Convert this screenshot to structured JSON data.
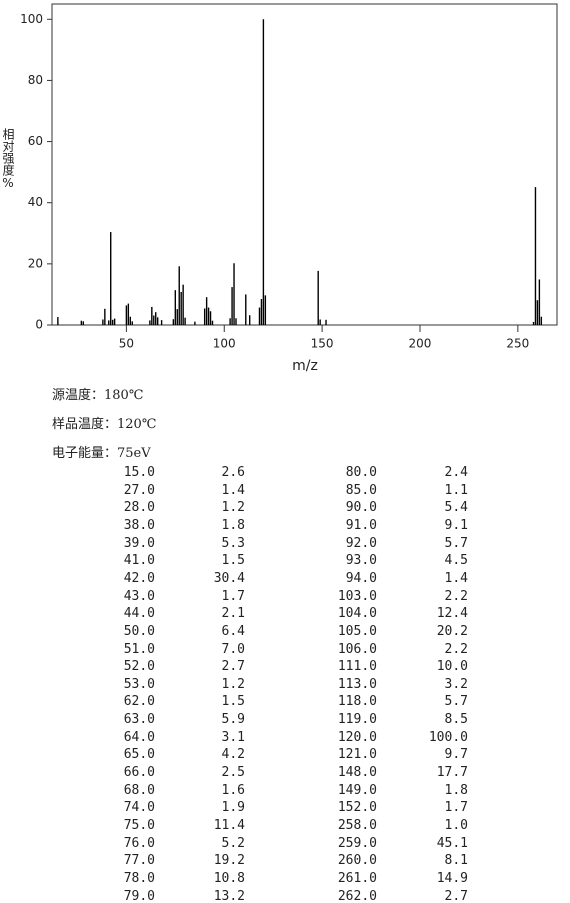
{
  "chart_data": {
    "type": "bar",
    "color": "#000000",
    "y_label": "相对强度%",
    "x_label": "m/z",
    "x": [
      15,
      27,
      28,
      38,
      39,
      41,
      42,
      43,
      44,
      50,
      51,
      52,
      53,
      62,
      63,
      64,
      65,
      66,
      68,
      74,
      75,
      76,
      77,
      78,
      79,
      80,
      85,
      90,
      91,
      92,
      93,
      94,
      103,
      104,
      105,
      106,
      111,
      113,
      118,
      119,
      120,
      121,
      148,
      149,
      152,
      258,
      259,
      260,
      261,
      262
    ],
    "values": [
      2.6,
      1.4,
      1.2,
      1.8,
      5.3,
      1.5,
      30.4,
      1.7,
      2.1,
      6.4,
      7.0,
      2.7,
      1.2,
      1.5,
      5.9,
      3.1,
      4.2,
      2.5,
      1.6,
      1.9,
      11.4,
      5.2,
      19.2,
      10.8,
      13.2,
      2.4,
      1.1,
      5.4,
      9.1,
      5.7,
      4.5,
      1.4,
      2.2,
      12.4,
      20.2,
      2.2,
      10.0,
      3.2,
      5.7,
      8.5,
      100.0,
      9.7,
      17.7,
      1.8,
      1.7,
      1.0,
      45.1,
      8.1,
      14.9,
      2.7
    ],
    "xlim": [
      12,
      270
    ],
    "ylim": [
      0,
      105
    ],
    "xticks": [
      50,
      100,
      150,
      200,
      250
    ],
    "yticks": [
      0,
      20,
      40,
      60,
      80,
      100
    ]
  },
  "conditions": [
    "源温度：180℃",
    "样品温度：120℃",
    "电子能量：75eV"
  ],
  "table": {
    "rows": [
      [
        "15.0",
        "2.6",
        "80.0",
        "2.4"
      ],
      [
        "27.0",
        "1.4",
        "85.0",
        "1.1"
      ],
      [
        "28.0",
        "1.2",
        "90.0",
        "5.4"
      ],
      [
        "38.0",
        "1.8",
        "91.0",
        "9.1"
      ],
      [
        "39.0",
        "5.3",
        "92.0",
        "5.7"
      ],
      [
        "41.0",
        "1.5",
        "93.0",
        "4.5"
      ],
      [
        "42.0",
        "30.4",
        "94.0",
        "1.4"
      ],
      [
        "43.0",
        "1.7",
        "103.0",
        "2.2"
      ],
      [
        "44.0",
        "2.1",
        "104.0",
        "12.4"
      ],
      [
        "50.0",
        "6.4",
        "105.0",
        "20.2"
      ],
      [
        "51.0",
        "7.0",
        "106.0",
        "2.2"
      ],
      [
        "52.0",
        "2.7",
        "111.0",
        "10.0"
      ],
      [
        "53.0",
        "1.2",
        "113.0",
        "3.2"
      ],
      [
        "62.0",
        "1.5",
        "118.0",
        "5.7"
      ],
      [
        "63.0",
        "5.9",
        "119.0",
        "8.5"
      ],
      [
        "64.0",
        "3.1",
        "120.0",
        "100.0"
      ],
      [
        "65.0",
        "4.2",
        "121.0",
        "9.7"
      ],
      [
        "66.0",
        "2.5",
        "148.0",
        "17.7"
      ],
      [
        "68.0",
        "1.6",
        "149.0",
        "1.8"
      ],
      [
        "74.0",
        "1.9",
        "152.0",
        "1.7"
      ],
      [
        "75.0",
        "11.4",
        "258.0",
        "1.0"
      ],
      [
        "76.0",
        "5.2",
        "259.0",
        "45.1"
      ],
      [
        "77.0",
        "19.2",
        "260.0",
        "8.1"
      ],
      [
        "78.0",
        "10.8",
        "261.0",
        "14.9"
      ],
      [
        "79.0",
        "13.2",
        "262.0",
        "2.7"
      ]
    ]
  }
}
